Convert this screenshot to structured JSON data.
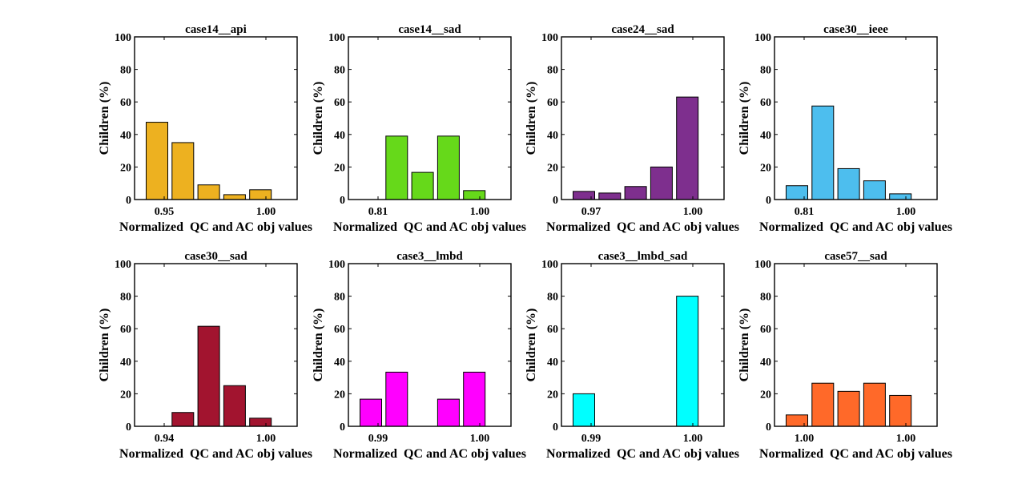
{
  "chart_data": [
    {
      "type": "bar",
      "title": "case14__api",
      "xlabel": "Normalized  QC and AC obj values",
      "ylabel": "Children (%)",
      "ylim": [
        0,
        100
      ],
      "yticks": [
        0,
        20,
        40,
        60,
        80,
        100
      ],
      "xtick_labels": [
        "0.95",
        "1.00"
      ],
      "color": "#EDB120",
      "values": [
        47.5,
        35,
        9,
        3,
        6
      ]
    },
    {
      "type": "bar",
      "title": "case14__sad",
      "xlabel": "Normalized  QC and AC obj values",
      "ylabel": "Children (%)",
      "ylim": [
        0,
        100
      ],
      "yticks": [
        0,
        20,
        40,
        60,
        80,
        100
      ],
      "xtick_labels": [
        "0.81",
        "1.00"
      ],
      "color": "#66D91A",
      "values": [
        0,
        39,
        16.7,
        39,
        5.5
      ]
    },
    {
      "type": "bar",
      "title": "case24__sad",
      "xlabel": "Normalized  QC and AC obj values",
      "ylabel": "Children (%)",
      "ylim": [
        0,
        100
      ],
      "yticks": [
        0,
        20,
        40,
        60,
        80,
        100
      ],
      "xtick_labels": [
        "0.97",
        "1.00"
      ],
      "color": "#7E2F8E",
      "values": [
        5,
        4,
        8,
        20,
        63
      ]
    },
    {
      "type": "bar",
      "title": "case30__ieee",
      "xlabel": "Normalized  QC and AC obj values",
      "ylabel": "Children (%)",
      "ylim": [
        0,
        100
      ],
      "yticks": [
        0,
        20,
        40,
        60,
        80,
        100
      ],
      "xtick_labels": [
        "0.81",
        "1.00"
      ],
      "color": "#4DBEEE",
      "values": [
        8.5,
        57.5,
        19,
        11.5,
        3.5
      ]
    },
    {
      "type": "bar",
      "title": "case30__sad",
      "xlabel": "Normalized  QC and AC obj values",
      "ylabel": "Children (%)",
      "ylim": [
        0,
        100
      ],
      "yticks": [
        0,
        20,
        40,
        60,
        80,
        100
      ],
      "xtick_labels": [
        "0.94",
        "1.00"
      ],
      "color": "#A2142F",
      "values": [
        0,
        8.5,
        61.5,
        25,
        5
      ]
    },
    {
      "type": "bar",
      "title": "case3__lmbd",
      "xlabel": "Normalized  QC and AC obj values",
      "ylabel": "Children (%)",
      "ylim": [
        0,
        100
      ],
      "yticks": [
        0,
        20,
        40,
        60,
        80,
        100
      ],
      "xtick_labels": [
        "0.99",
        "1.00"
      ],
      "color": "#FF00FF",
      "values": [
        16.7,
        33.3,
        0,
        16.7,
        33.3
      ]
    },
    {
      "type": "bar",
      "title": "case3__lmbd_sad",
      "xlabel": "Normalized  QC and AC obj values",
      "ylabel": "Children (%)",
      "ylim": [
        0,
        100
      ],
      "yticks": [
        0,
        20,
        40,
        60,
        80,
        100
      ],
      "xtick_labels": [
        "0.99",
        "1.00"
      ],
      "color": "#00FFFF",
      "values": [
        20,
        0,
        0,
        0,
        80
      ]
    },
    {
      "type": "bar",
      "title": "case57__sad",
      "xlabel": "Normalized  QC and AC obj values",
      "ylabel": "Children (%)",
      "ylim": [
        0,
        100
      ],
      "yticks": [
        0,
        20,
        40,
        60,
        80,
        100
      ],
      "xtick_labels": [
        "1.00",
        "1.00"
      ],
      "color": "#FF6929",
      "values": [
        7,
        26.5,
        21.5,
        26.5,
        19
      ]
    }
  ]
}
